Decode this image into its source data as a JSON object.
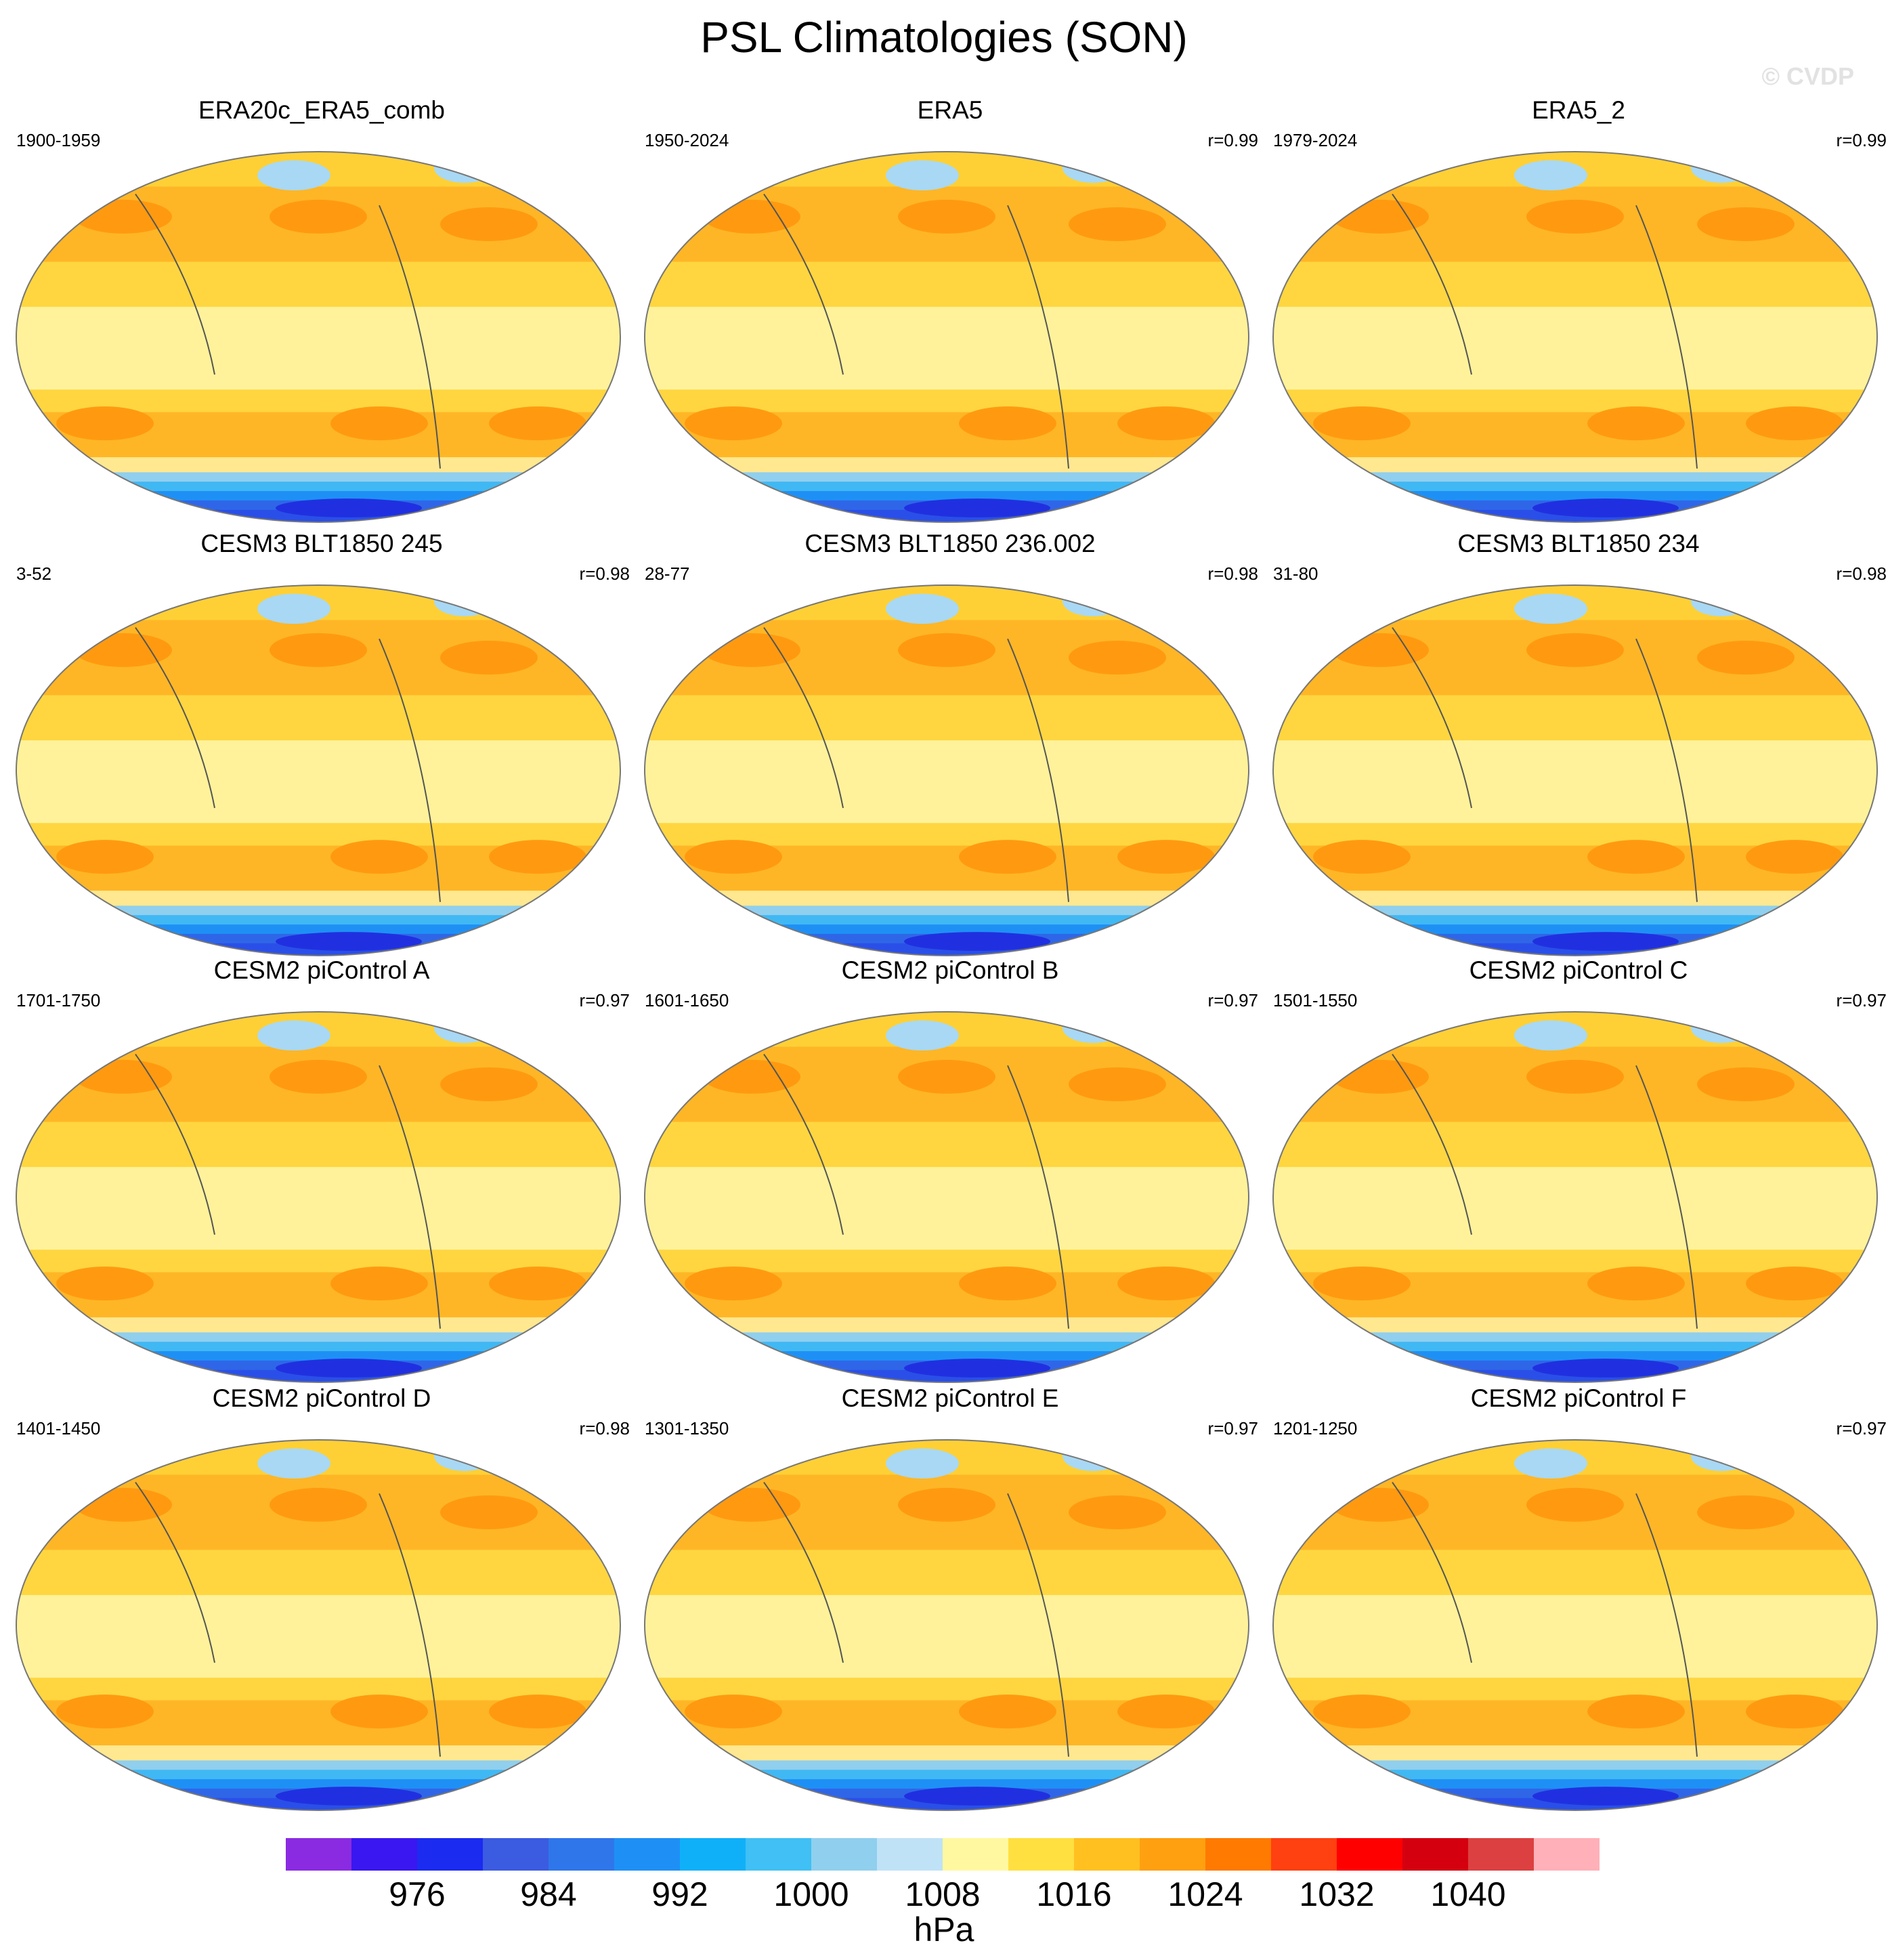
{
  "figure": {
    "title": "PSL Climatologies (SON)",
    "watermark": "© CVDP"
  },
  "panels": [
    {
      "title": "ERA20c_ERA5_comb",
      "years": "1900-1959",
      "r": ""
    },
    {
      "title": "ERA5",
      "years": "1950-2024",
      "r": "r=0.99"
    },
    {
      "title": "ERA5_2",
      "years": "1979-2024",
      "r": "r=0.99"
    },
    {
      "title": "CESM3 BLT1850 245",
      "years": "3-52",
      "r": "r=0.98"
    },
    {
      "title": "CESM3 BLT1850 236.002",
      "years": "28-77",
      "r": "r=0.98"
    },
    {
      "title": "CESM3 BLT1850 234",
      "years": "31-80",
      "r": "r=0.98"
    },
    {
      "title": "CESM2 piControl A",
      "years": "1701-1750",
      "r": "r=0.97"
    },
    {
      "title": "CESM2 piControl B",
      "years": "1601-1650",
      "r": "r=0.97"
    },
    {
      "title": "CESM2 piControl C",
      "years": "1501-1550",
      "r": "r=0.97"
    },
    {
      "title": "CESM2 piControl D",
      "years": "1401-1450",
      "r": "r=0.98"
    },
    {
      "title": "CESM2 piControl E",
      "years": "1301-1350",
      "r": "r=0.97"
    },
    {
      "title": "CESM2 piControl F",
      "years": "1201-1250",
      "r": "r=0.97"
    }
  ],
  "colorbar": {
    "labels": [
      "976",
      "984",
      "992",
      "1000",
      "1008",
      "1016",
      "1024",
      "1032",
      "1040"
    ],
    "units": "hPa",
    "colors": [
      "#8a2be2",
      "#3a17f0",
      "#1b2bf0",
      "#3b5be0",
      "#2f76ea",
      "#1e90f5",
      "#10b0f8",
      "#40c0f4",
      "#90cfee",
      "#c0e2f6",
      "#fff8a0",
      "#ffe040",
      "#ffc020",
      "#ffa010",
      "#ff7a00",
      "#ff4010",
      "#ff0000",
      "#d40010",
      "#dc4040",
      "#ffb0b8"
    ]
  }
}
